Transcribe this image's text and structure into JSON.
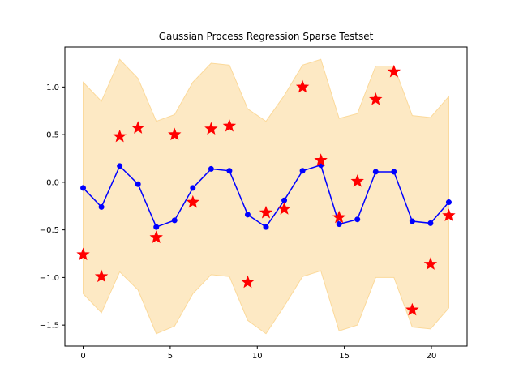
{
  "chart_data": {
    "type": "line",
    "title": "Gaussian Process Regression Sparse Testset",
    "xlabel": "",
    "ylabel": "",
    "xlim": [
      -1.05,
      22.05
    ],
    "ylim": [
      -1.72,
      1.42
    ],
    "xticks": [
      0,
      5,
      10,
      15,
      20
    ],
    "xtick_labels": [
      "0",
      "5",
      "10",
      "15",
      "20"
    ],
    "yticks": [
      -1.5,
      -1.0,
      -0.5,
      0.0,
      0.5,
      1.0
    ],
    "ytick_labels": [
      "−1.5",
      "−1.0",
      "−0.5",
      "0.0",
      "0.5",
      "1.0"
    ],
    "grid": false,
    "legend": "none",
    "colors": {
      "mean": "#0000ff",
      "band": "#fde9c4",
      "band_edge": "#fbd99a",
      "test_points": "#ff0000"
    },
    "series": [
      {
        "kind": "mean",
        "x": [
          0,
          1.05,
          2.1,
          3.15,
          4.2,
          5.25,
          6.3,
          7.35,
          8.4,
          9.45,
          10.5,
          11.55,
          12.6,
          13.65,
          14.7,
          15.75,
          16.8,
          17.85,
          18.9,
          19.95,
          21.0
        ],
        "values": [
          -0.06,
          -0.26,
          0.17,
          -0.02,
          -0.47,
          -0.4,
          -0.06,
          0.14,
          0.12,
          -0.34,
          -0.47,
          -0.19,
          0.12,
          0.18,
          -0.44,
          -0.39,
          0.11,
          0.11,
          -0.41,
          -0.43,
          -0.21
        ]
      },
      {
        "kind": "band",
        "x": [
          0,
          1.05,
          2.1,
          3.15,
          4.2,
          5.25,
          6.3,
          7.35,
          8.4,
          9.45,
          10.5,
          11.55,
          12.6,
          13.65,
          14.7,
          15.75,
          16.8,
          17.85,
          18.9,
          19.95,
          21.0
        ],
        "upper": [
          1.05,
          0.85,
          1.29,
          1.09,
          0.64,
          0.71,
          1.05,
          1.25,
          1.23,
          0.77,
          0.64,
          0.91,
          1.23,
          1.29,
          0.67,
          0.72,
          1.22,
          1.22,
          0.7,
          0.68,
          0.9
        ],
        "lower": [
          -1.17,
          -1.37,
          -0.94,
          -1.13,
          -1.59,
          -1.51,
          -1.17,
          -0.97,
          -0.99,
          -1.45,
          -1.59,
          -1.3,
          -0.99,
          -0.93,
          -1.56,
          -1.5,
          -1.0,
          -1.0,
          -1.52,
          -1.54,
          -1.32
        ]
      },
      {
        "kind": "test",
        "x": [
          0,
          1.05,
          2.1,
          3.15,
          4.2,
          5.25,
          6.3,
          7.35,
          8.4,
          9.45,
          10.5,
          11.55,
          12.6,
          13.65,
          14.7,
          15.75,
          16.8,
          17.85,
          18.9,
          19.95,
          21.0
        ],
        "values": [
          -0.76,
          -0.99,
          0.48,
          0.57,
          -0.58,
          0.5,
          -0.21,
          0.56,
          0.59,
          -1.05,
          -0.32,
          -0.28,
          1.0,
          0.23,
          -0.37,
          0.01,
          0.87,
          1.16,
          -1.34,
          -0.86,
          -0.35
        ]
      }
    ]
  }
}
